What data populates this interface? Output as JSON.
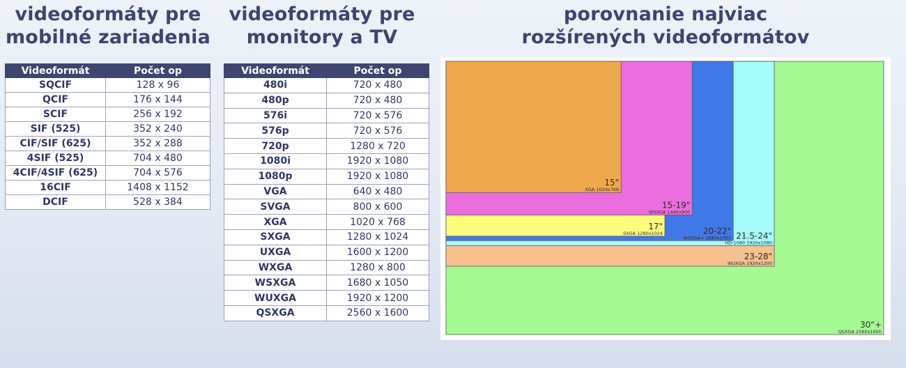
{
  "headings": {
    "mobile": "videoformáty pre mobilné zariadenia",
    "monitor": "videoformáty pre monitory a TV",
    "compare": "porovnanie najviac rozšírených videoformátov"
  },
  "mobile_table": {
    "headers": [
      "Videoformát",
      "Počet op"
    ],
    "rows": [
      [
        "SQCIF",
        "128 x 96"
      ],
      [
        "QCIF",
        "176 x 144"
      ],
      [
        "SCIF",
        "256 x 192"
      ],
      [
        "SIF (525)",
        "352 x 240"
      ],
      [
        "CIF/SIF (625)",
        "352 x 288"
      ],
      [
        "4SIF (525)",
        "704 x 480"
      ],
      [
        "4CIF/4SIF (625)",
        "704 x 576"
      ],
      [
        "16CIF",
        "1408 x 1152"
      ],
      [
        "DCIF",
        "528 x 384"
      ]
    ]
  },
  "monitor_table": {
    "headers": [
      "Videoformát",
      "Počet op"
    ],
    "rows": [
      [
        "480i",
        "720 x 480"
      ],
      [
        "480p",
        "720 x 480"
      ],
      [
        "576i",
        "720 x 576"
      ],
      [
        "576p",
        "720 x 576"
      ],
      [
        "720p",
        "1280 x 720"
      ],
      [
        "1080i",
        "1920 x 1080"
      ],
      [
        "1080p",
        "1920 x 1080"
      ],
      [
        "VGA",
        "640 x 480"
      ],
      [
        "SVGA",
        "800 x 600"
      ],
      [
        "XGA",
        "1020 x 768"
      ],
      [
        "SXGA",
        "1280 x 1024"
      ],
      [
        "UXGA",
        "1600 x 1200"
      ],
      [
        "WXGA",
        "1280 x 800"
      ],
      [
        "WSXGA",
        "1680 x 1050"
      ],
      [
        "WUXGA",
        "1920 x 1200"
      ],
      [
        "QSXGA",
        "2560 x 1600"
      ]
    ]
  },
  "comparison": {
    "formats": [
      {
        "id": "qsxga",
        "size": "30\"+",
        "label": "QSXGA 2560x1600",
        "width": 2560,
        "height": 1600,
        "color": "#a6fa93"
      },
      {
        "id": "wuxga",
        "size": "23-28\"",
        "label": "WUXGA 1920x1200",
        "width": 1920,
        "height": 1200,
        "color": "#f6c08f"
      },
      {
        "id": "hd1080",
        "size": "21.5-24\"",
        "label": "HD-1080 1920x1080",
        "width": 1920,
        "height": 1080,
        "color": "#a5fafa"
      },
      {
        "id": "wsxgaplus",
        "size": "20-22\"",
        "label": "WSXGA+ 1680x1050",
        "width": 1680,
        "height": 1050,
        "color": "#4279e8"
      },
      {
        "id": "sxga",
        "size": "17\"",
        "label": "SXGA 1280x1024",
        "width": 1280,
        "height": 1024,
        "color": "#fbfb7e"
      },
      {
        "id": "wsxga",
        "size": "15-19\"",
        "label": "WSXGA 1440x900",
        "width": 1440,
        "height": 900,
        "color": "#ec6ddd"
      },
      {
        "id": "xga",
        "size": "15\"",
        "label": "XGA 1024x768",
        "width": 1024,
        "height": 768,
        "color": "#efa94d"
      }
    ]
  }
}
